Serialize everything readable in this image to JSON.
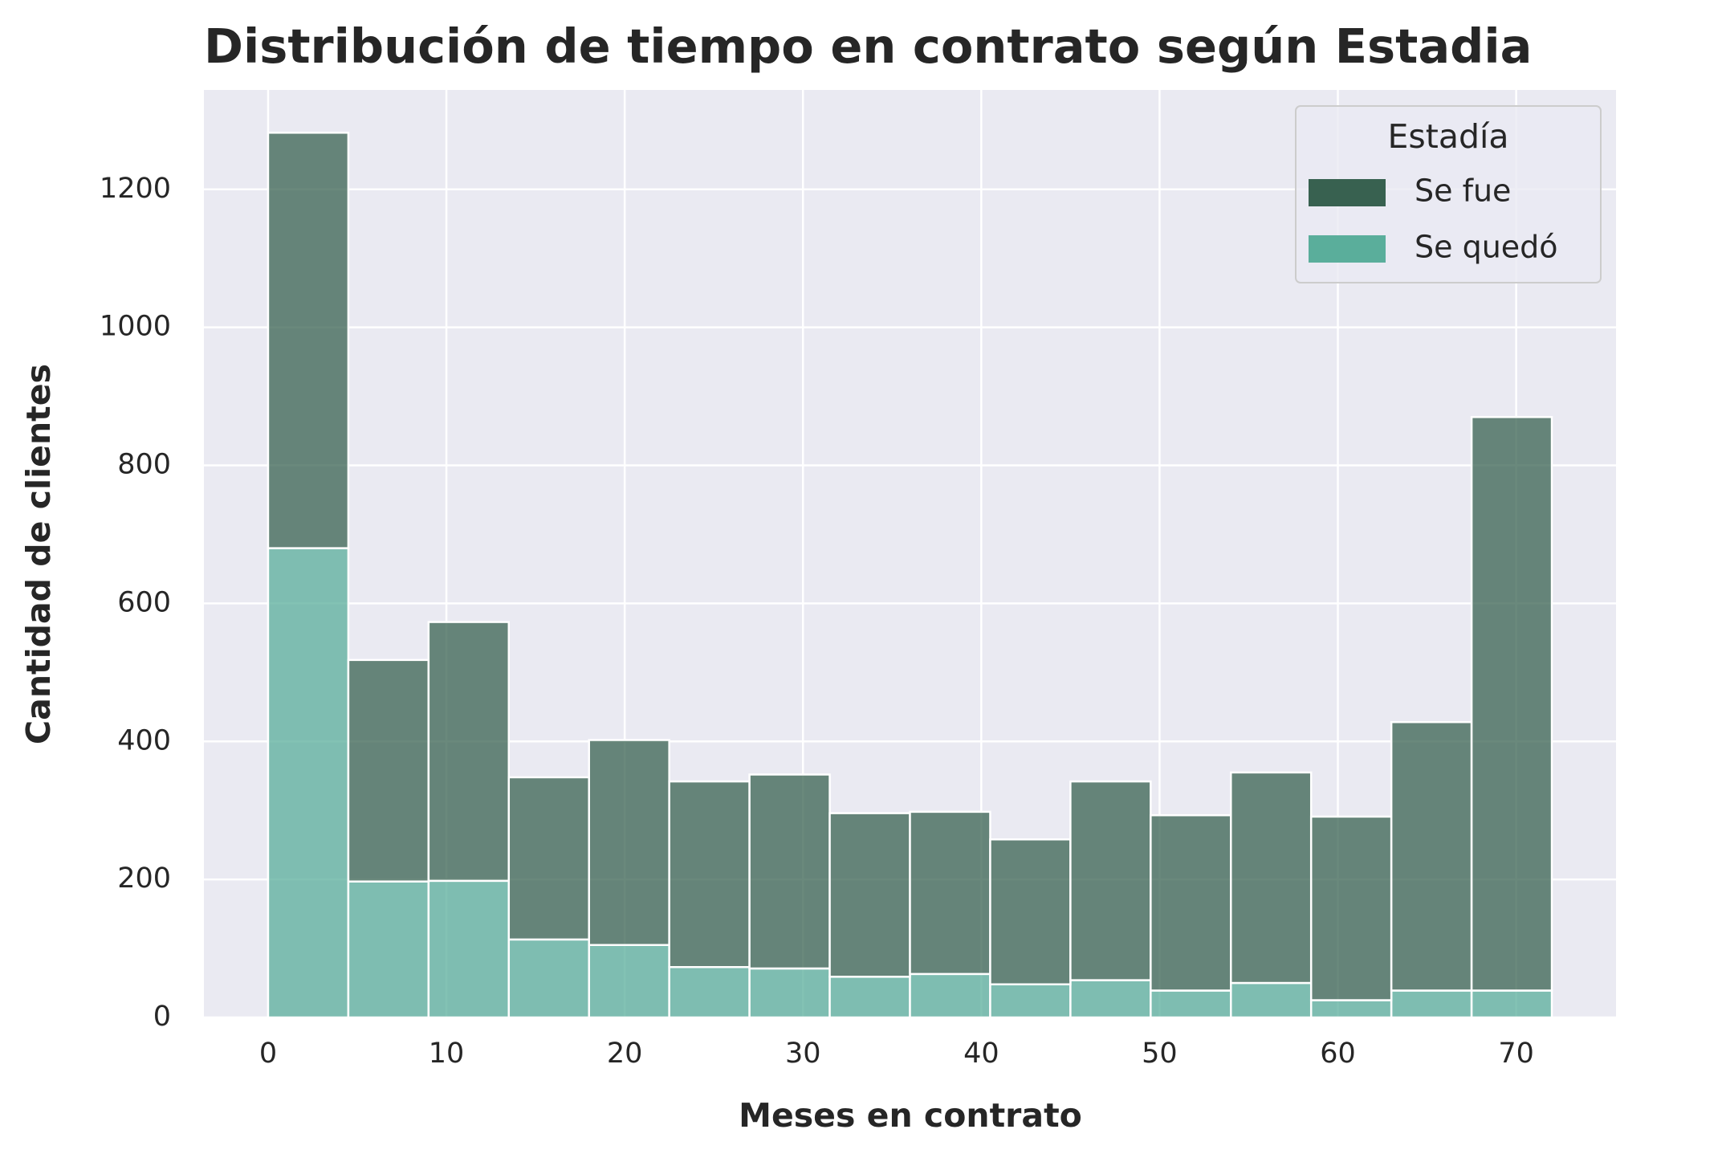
{
  "chart_data": {
    "type": "histogram",
    "title": "Distribución de tiempo en contrato según Estadia",
    "xlabel": "Meses en contrato",
    "ylabel": "Cantidad de clientes",
    "legend_title": "Estadía",
    "legend": "upper right",
    "grid": true,
    "stacked": true,
    "bins": [
      0,
      4.5,
      9,
      13.5,
      18,
      22.5,
      27,
      31.5,
      36,
      40.5,
      45,
      49.5,
      54,
      58.5,
      63,
      67.5,
      72
    ],
    "series": [
      {
        "name": "Se fue",
        "color": "#386150",
        "values": [
          602,
          321,
          375,
          235,
          297,
          269,
          281,
          237,
          235,
          210,
          288,
          254,
          305,
          266,
          389,
          831
        ]
      },
      {
        "name": "Se quedó",
        "color": "#5aae9b",
        "values": [
          680,
          197,
          198,
          113,
          105,
          73,
          71,
          59,
          63,
          48,
          54,
          39,
          50,
          25,
          39,
          39
        ]
      }
    ],
    "xlim": [
      -3.6,
      75.6
    ],
    "xticks": [
      0,
      10,
      20,
      30,
      40,
      50,
      60,
      70
    ],
    "ylim": [
      0,
      1344
    ],
    "yticks": [
      0,
      200,
      400,
      600,
      800,
      1000,
      1200
    ]
  }
}
